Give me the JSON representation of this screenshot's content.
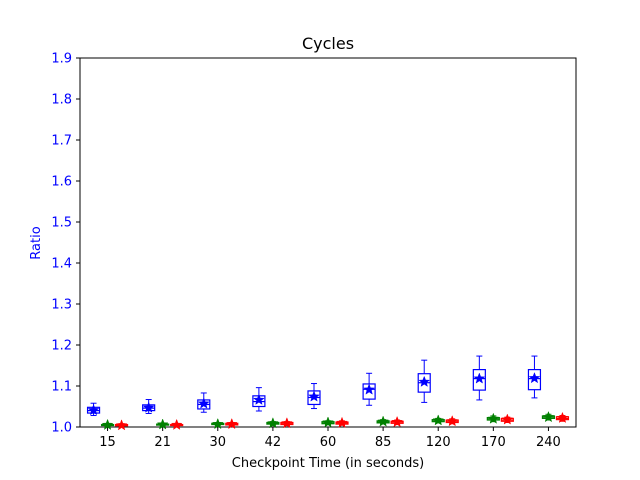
{
  "chart_data": {
    "type": "box",
    "title": "Cycles",
    "xlabel": "Checkpoint Time (in seconds)",
    "ylabel": "Ratio",
    "ylim": [
      1.0,
      1.9
    ],
    "yticks": [
      "1.0",
      "1.1",
      "1.2",
      "1.3",
      "1.4",
      "1.5",
      "1.6",
      "1.7",
      "1.8",
      "1.9"
    ],
    "categories": [
      "15",
      "21",
      "30",
      "42",
      "60",
      "85",
      "120",
      "170",
      "240"
    ],
    "grid": false,
    "legend": "none",
    "series": [
      {
        "color": "#0000ff",
        "boxes": [
          {
            "whisker_low": 1.028,
            "q1": 1.034,
            "median": 1.04,
            "q3": 1.048,
            "whisker_high": 1.058,
            "mean": 1.041
          },
          {
            "whisker_low": 1.033,
            "q1": 1.04,
            "median": 1.046,
            "q3": 1.054,
            "whisker_high": 1.067,
            "mean": 1.047
          },
          {
            "whisker_low": 1.036,
            "q1": 1.044,
            "median": 1.055,
            "q3": 1.066,
            "whisker_high": 1.083,
            "mean": 1.057
          },
          {
            "whisker_low": 1.039,
            "q1": 1.05,
            "median": 1.062,
            "q3": 1.076,
            "whisker_high": 1.096,
            "mean": 1.066
          },
          {
            "whisker_low": 1.045,
            "q1": 1.055,
            "median": 1.072,
            "q3": 1.088,
            "whisker_high": 1.106,
            "mean": 1.074
          },
          {
            "whisker_low": 1.053,
            "q1": 1.068,
            "median": 1.092,
            "q3": 1.105,
            "whisker_high": 1.131,
            "mean": 1.091
          },
          {
            "whisker_low": 1.06,
            "q1": 1.085,
            "median": 1.108,
            "q3": 1.13,
            "whisker_high": 1.163,
            "mean": 1.11
          },
          {
            "whisker_low": 1.066,
            "q1": 1.09,
            "median": 1.118,
            "q3": 1.14,
            "whisker_high": 1.173,
            "mean": 1.118
          },
          {
            "whisker_low": 1.071,
            "q1": 1.091,
            "median": 1.118,
            "q3": 1.14,
            "whisker_high": 1.173,
            "mean": 1.119
          }
        ]
      },
      {
        "color": "#008000",
        "boxes": [
          {
            "whisker_low": 1.002,
            "q1": 1.004,
            "median": 1.005,
            "q3": 1.006,
            "whisker_high": 1.008,
            "mean": 1.005
          },
          {
            "whisker_low": 1.003,
            "q1": 1.005,
            "median": 1.006,
            "q3": 1.007,
            "whisker_high": 1.009,
            "mean": 1.006
          },
          {
            "whisker_low": 1.004,
            "q1": 1.006,
            "median": 1.007,
            "q3": 1.009,
            "whisker_high": 1.011,
            "mean": 1.007
          },
          {
            "whisker_low": 1.005,
            "q1": 1.007,
            "median": 1.009,
            "q3": 1.011,
            "whisker_high": 1.013,
            "mean": 1.009
          },
          {
            "whisker_low": 1.006,
            "q1": 1.008,
            "median": 1.01,
            "q3": 1.013,
            "whisker_high": 1.015,
            "mean": 1.011
          },
          {
            "whisker_low": 1.008,
            "q1": 1.01,
            "median": 1.012,
            "q3": 1.015,
            "whisker_high": 1.018,
            "mean": 1.013
          },
          {
            "whisker_low": 1.01,
            "q1": 1.013,
            "median": 1.015,
            "q3": 1.018,
            "whisker_high": 1.021,
            "mean": 1.016
          },
          {
            "whisker_low": 1.013,
            "q1": 1.017,
            "median": 1.02,
            "q3": 1.023,
            "whisker_high": 1.027,
            "mean": 1.02
          },
          {
            "whisker_low": 1.017,
            "q1": 1.021,
            "median": 1.024,
            "q3": 1.027,
            "whisker_high": 1.031,
            "mean": 1.024
          }
        ]
      },
      {
        "color": "#ff0000",
        "boxes": [
          {
            "whisker_low": 1.002,
            "q1": 1.003,
            "median": 1.004,
            "q3": 1.006,
            "whisker_high": 1.008,
            "mean": 1.004
          },
          {
            "whisker_low": 1.002,
            "q1": 1.004,
            "median": 1.005,
            "q3": 1.006,
            "whisker_high": 1.008,
            "mean": 1.005
          },
          {
            "whisker_low": 1.003,
            "q1": 1.005,
            "median": 1.007,
            "q3": 1.009,
            "whisker_high": 1.011,
            "mean": 1.007
          },
          {
            "whisker_low": 1.004,
            "q1": 1.006,
            "median": 1.009,
            "q3": 1.011,
            "whisker_high": 1.013,
            "mean": 1.009
          },
          {
            "whisker_low": 1.005,
            "q1": 1.007,
            "median": 1.01,
            "q3": 1.012,
            "whisker_high": 1.015,
            "mean": 1.01
          },
          {
            "whisker_low": 1.006,
            "q1": 1.009,
            "median": 1.012,
            "q3": 1.014,
            "whisker_high": 1.017,
            "mean": 1.012
          },
          {
            "whisker_low": 1.008,
            "q1": 1.011,
            "median": 1.014,
            "q3": 1.017,
            "whisker_high": 1.02,
            "mean": 1.014
          },
          {
            "whisker_low": 1.011,
            "q1": 1.014,
            "median": 1.017,
            "q3": 1.021,
            "whisker_high": 1.024,
            "mean": 1.018
          },
          {
            "whisker_low": 1.014,
            "q1": 1.018,
            "median": 1.021,
            "q3": 1.025,
            "whisker_high": 1.028,
            "mean": 1.022
          }
        ]
      }
    ]
  }
}
